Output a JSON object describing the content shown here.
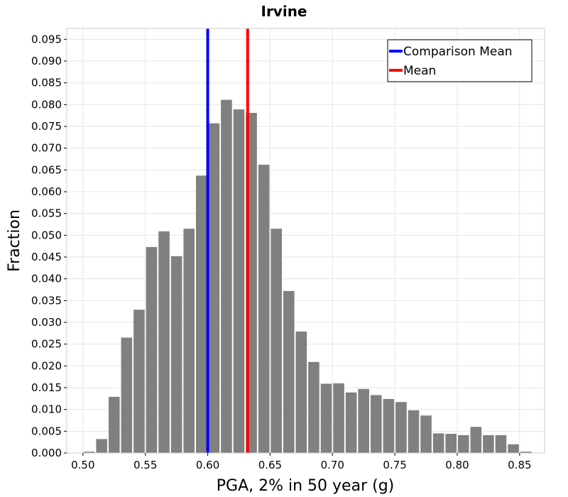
{
  "chart_data": {
    "type": "bar",
    "title": "Irvine",
    "xlabel": "PGA, 2% in 50 year (g)",
    "ylabel": "Fraction",
    "xlim": [
      0.487,
      0.87
    ],
    "ylim": [
      0,
      0.0975
    ],
    "bin_width": 0.01,
    "xticks": [
      "0.50",
      "0.55",
      "0.60",
      "0.65",
      "0.70",
      "0.75",
      "0.80",
      "0.85"
    ],
    "yticks": [
      "0.000",
      "0.005",
      "0.010",
      "0.015",
      "0.020",
      "0.025",
      "0.030",
      "0.035",
      "0.040",
      "0.045",
      "0.050",
      "0.055",
      "0.060",
      "0.065",
      "0.070",
      "0.075",
      "0.080",
      "0.085",
      "0.090",
      "0.095"
    ],
    "bar_color": "#808080",
    "bins": [
      0.505,
      0.515,
      0.525,
      0.535,
      0.545,
      0.555,
      0.565,
      0.575,
      0.585,
      0.595,
      0.605,
      0.615,
      0.625,
      0.635,
      0.645,
      0.655,
      0.665,
      0.675,
      0.685,
      0.695,
      0.705,
      0.715,
      0.725,
      0.735,
      0.745,
      0.755,
      0.765,
      0.775,
      0.785,
      0.795,
      0.805,
      0.815,
      0.825,
      0.835,
      0.845,
      0.855
    ],
    "values": [
      0.0003,
      0.0032,
      0.0129,
      0.0265,
      0.0329,
      0.0473,
      0.0509,
      0.0452,
      0.0515,
      0.0637,
      0.0757,
      0.0811,
      0.0789,
      0.0781,
      0.0662,
      0.0515,
      0.0372,
      0.0279,
      0.0209,
      0.0159,
      0.016,
      0.0139,
      0.0147,
      0.0133,
      0.0124,
      0.0117,
      0.0098,
      0.0086,
      0.0045,
      0.0044,
      0.0041,
      0.006,
      0.0041,
      0.0041,
      0.002,
      0.0003
    ],
    "vlines": [
      {
        "name": "Comparison Mean",
        "x": 0.6,
        "color": "#0000ff"
      },
      {
        "name": "Mean",
        "x": 0.632,
        "color": "#ff0000"
      }
    ],
    "legend_position": "top-right",
    "grid": true
  }
}
